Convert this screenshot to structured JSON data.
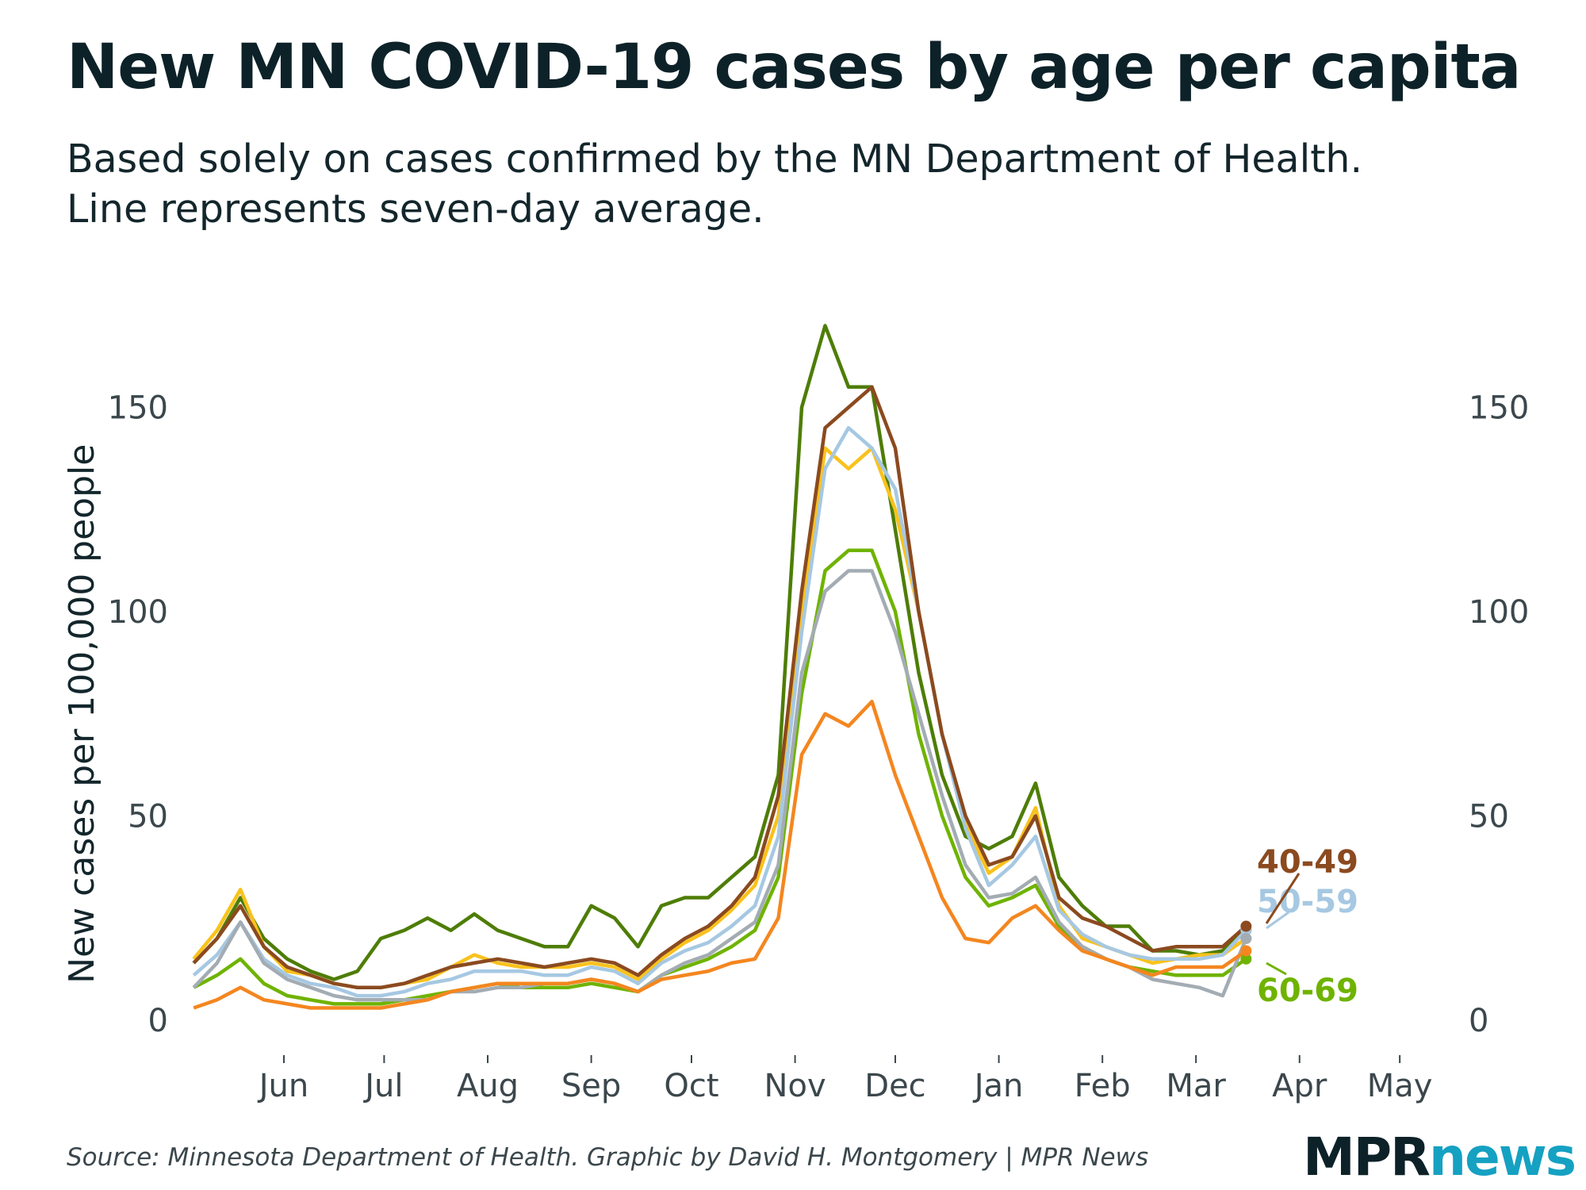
{
  "title": "New MN COVID-19 cases by age per capita",
  "subtitle_line1": "Based solely on cases confirmed by the MN Department of Health.",
  "subtitle_line2": "Line represents seven-day average.",
  "source": "Source: Minnesota Department of Health. Graphic by David H. Montgomery | MPR News",
  "logo": {
    "part1": "MPR",
    "part2": "news"
  },
  "chart_data": {
    "type": "line",
    "title": "New MN COVID-19 cases by age per capita",
    "ylabel": "New cases per 100,000 people",
    "xlabel": "",
    "ylim": [
      0,
      180
    ],
    "yticks": [
      0,
      50,
      100,
      150
    ],
    "xlim": [
      "2020-05-05",
      "2021-05-15"
    ],
    "xtick_labels": [
      "Jun",
      "Jul",
      "Aug",
      "Sep",
      "Oct",
      "Nov",
      "Dec",
      "Jan",
      "Feb",
      "Mar",
      "Apr",
      "May"
    ],
    "xtick_dates": [
      "2020-06-01",
      "2020-07-01",
      "2020-08-01",
      "2020-09-01",
      "2020-10-01",
      "2020-11-01",
      "2020-12-01",
      "2021-01-01",
      "2021-02-01",
      "2021-03-01",
      "2021-04-01",
      "2021-05-01"
    ],
    "grid": false,
    "x": [
      "2020-05-05",
      "2020-05-12",
      "2020-05-19",
      "2020-05-26",
      "2020-06-02",
      "2020-06-09",
      "2020-06-16",
      "2020-06-23",
      "2020-06-30",
      "2020-07-07",
      "2020-07-14",
      "2020-07-21",
      "2020-07-28",
      "2020-08-04",
      "2020-08-11",
      "2020-08-18",
      "2020-08-25",
      "2020-09-01",
      "2020-09-08",
      "2020-09-15",
      "2020-09-22",
      "2020-09-29",
      "2020-10-06",
      "2020-10-13",
      "2020-10-20",
      "2020-10-27",
      "2020-11-03",
      "2020-11-10",
      "2020-11-17",
      "2020-11-24",
      "2020-12-01",
      "2020-12-08",
      "2020-12-15",
      "2020-12-22",
      "2020-12-29",
      "2021-01-05",
      "2021-01-12",
      "2021-01-19",
      "2021-01-26",
      "2021-02-02",
      "2021-02-09",
      "2021-02-16",
      "2021-02-23",
      "2021-03-02",
      "2021-03-09",
      "2021-03-16"
    ],
    "series": [
      {
        "color": "#4e7d06",
        "values": [
          14,
          20,
          30,
          20,
          15,
          12,
          10,
          12,
          20,
          22,
          25,
          22,
          26,
          22,
          20,
          18,
          18,
          28,
          25,
          18,
          28,
          30,
          30,
          35,
          40,
          60,
          150,
          170,
          155,
          155,
          120,
          85,
          60,
          45,
          42,
          45,
          58,
          35,
          28,
          23,
          23,
          17,
          17,
          16,
          17,
          22
        ]
      },
      {
        "color": "#f9c21c",
        "values": [
          15,
          22,
          32,
          18,
          12,
          11,
          9,
          8,
          8,
          9,
          10,
          13,
          16,
          14,
          13,
          13,
          13,
          14,
          13,
          10,
          15,
          19,
          22,
          27,
          33,
          50,
          100,
          140,
          135,
          140,
          125,
          100,
          70,
          48,
          36,
          40,
          52,
          28,
          20,
          18,
          16,
          14,
          15,
          16,
          16,
          20
        ]
      },
      {
        "color": "#a6c8e2",
        "name": "50-59",
        "values": [
          11,
          16,
          24,
          15,
          11,
          9,
          8,
          6,
          6,
          7,
          9,
          10,
          12,
          12,
          12,
          11,
          11,
          13,
          12,
          9,
          14,
          17,
          19,
          23,
          28,
          45,
          95,
          135,
          145,
          140,
          130,
          100,
          70,
          47,
          33,
          38,
          45,
          27,
          21,
          18,
          16,
          15,
          15,
          15,
          16,
          22
        ]
      },
      {
        "color": "#6fb300",
        "name": "60-69",
        "values": [
          8,
          11,
          15,
          9,
          6,
          5,
          4,
          4,
          4,
          5,
          6,
          7,
          8,
          9,
          8,
          8,
          8,
          9,
          8,
          7,
          11,
          13,
          15,
          18,
          22,
          35,
          80,
          110,
          115,
          115,
          100,
          70,
          50,
          35,
          28,
          30,
          33,
          23,
          18,
          15,
          13,
          12,
          11,
          11,
          11,
          15
        ]
      },
      {
        "color": "#a3acb3",
        "values": [
          8,
          14,
          24,
          14,
          10,
          8,
          6,
          5,
          5,
          5,
          5,
          7,
          7,
          8,
          8,
          9,
          9,
          10,
          9,
          7,
          11,
          14,
          16,
          20,
          24,
          38,
          85,
          105,
          110,
          110,
          95,
          75,
          55,
          38,
          30,
          31,
          35,
          24,
          18,
          15,
          13,
          10,
          9,
          8,
          6,
          20
        ]
      },
      {
        "color": "#f4861f",
        "values": [
          3,
          5,
          8,
          5,
          4,
          3,
          3,
          3,
          3,
          4,
          5,
          7,
          8,
          9,
          9,
          9,
          9,
          10,
          9,
          7,
          10,
          11,
          12,
          14,
          15,
          25,
          65,
          75,
          72,
          78,
          60,
          45,
          30,
          20,
          19,
          25,
          28,
          22,
          17,
          15,
          13,
          11,
          13,
          13,
          13,
          17
        ]
      },
      {
        "color": "#8b4a1f",
        "name": "40-49",
        "values": [
          14,
          20,
          28,
          18,
          13,
          11,
          9,
          8,
          8,
          9,
          11,
          13,
          14,
          15,
          14,
          13,
          14,
          15,
          14,
          11,
          16,
          20,
          23,
          28,
          35,
          55,
          105,
          145,
          150,
          155,
          140,
          100,
          70,
          50,
          38,
          40,
          50,
          30,
          25,
          23,
          20,
          17,
          18,
          18,
          18,
          23
        ]
      }
    ]
  }
}
